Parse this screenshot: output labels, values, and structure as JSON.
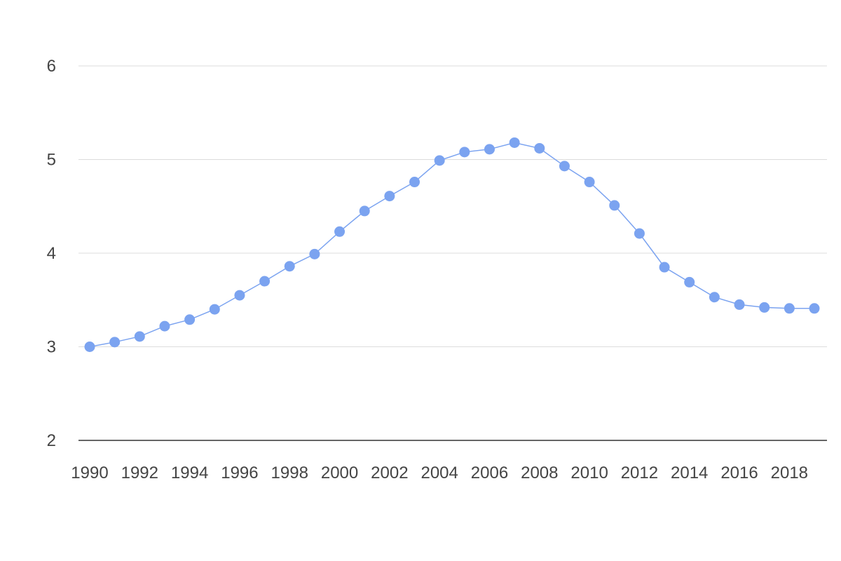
{
  "chart_data": {
    "type": "line",
    "title": "",
    "xlabel": "",
    "ylabel": "",
    "x": [
      1990,
      1991,
      1992,
      1993,
      1994,
      1995,
      1996,
      1997,
      1998,
      1999,
      2000,
      2001,
      2002,
      2003,
      2004,
      2005,
      2006,
      2007,
      2008,
      2009,
      2010,
      2011,
      2012,
      2013,
      2014,
      2015,
      2016,
      2017,
      2018,
      2019
    ],
    "series": [
      {
        "values": [
          3.0,
          3.05,
          3.11,
          3.22,
          3.29,
          3.4,
          3.55,
          3.7,
          3.86,
          3.99,
          4.23,
          4.45,
          4.61,
          4.76,
          4.99,
          5.08,
          5.11,
          5.18,
          5.12,
          4.93,
          4.76,
          4.51,
          4.21,
          3.85,
          3.69,
          3.53,
          3.45,
          3.42,
          3.41,
          3.41
        ],
        "color": "#7ba3f0"
      }
    ],
    "xlim": [
      1990,
      2019
    ],
    "ylim": [
      2,
      6
    ],
    "xticks": [
      "1990",
      "1992",
      "1994",
      "1996",
      "1998",
      "2000",
      "2002",
      "2004",
      "2006",
      "2008",
      "2010",
      "2012",
      "2014",
      "2016",
      "2018"
    ],
    "yticks": [
      "2",
      "3",
      "4",
      "5",
      "6"
    ],
    "grid": true,
    "legend": "none",
    "markers": "circle"
  }
}
